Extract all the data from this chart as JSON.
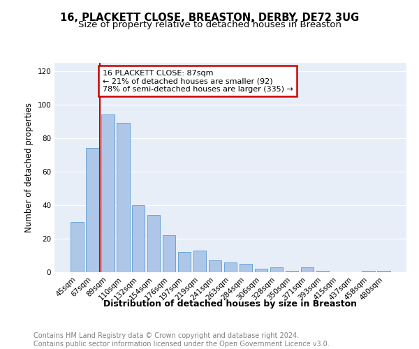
{
  "title": "16, PLACKETT CLOSE, BREASTON, DERBY, DE72 3UG",
  "subtitle": "Size of property relative to detached houses in Breaston",
  "xlabel": "Distribution of detached houses by size in Breaston",
  "ylabel": "Number of detached properties",
  "footer_line1": "Contains HM Land Registry data © Crown copyright and database right 2024.",
  "footer_line2": "Contains public sector information licensed under the Open Government Licence v3.0.",
  "bar_labels": [
    "45sqm",
    "67sqm",
    "89sqm",
    "110sqm",
    "132sqm",
    "154sqm",
    "176sqm",
    "197sqm",
    "219sqm",
    "241sqm",
    "263sqm",
    "284sqm",
    "306sqm",
    "328sqm",
    "350sqm",
    "371sqm",
    "393sqm",
    "415sqm",
    "437sqm",
    "458sqm",
    "480sqm"
  ],
  "bar_values": [
    30,
    74,
    94,
    89,
    40,
    34,
    22,
    12,
    13,
    7,
    6,
    5,
    2,
    3,
    1,
    3,
    1,
    0,
    0,
    1,
    1
  ],
  "bar_color": "#aec6e8",
  "bar_edgecolor": "#5a9bd4",
  "annotation_title": "16 PLACKETT CLOSE: 87sqm",
  "annotation_line2": "← 21% of detached houses are smaller (92)",
  "annotation_line3": "78% of semi-detached houses are larger (335) →",
  "annotation_box_color": "#cc0000",
  "vline_color": "#cc0000",
  "ylim": [
    0,
    125
  ],
  "yticks": [
    0,
    20,
    40,
    60,
    80,
    100,
    120
  ],
  "background_color": "#e8eef8",
  "grid_color": "#ffffff",
  "title_fontsize": 10.5,
  "subtitle_fontsize": 9.5,
  "ylabel_fontsize": 8.5,
  "xlabel_fontsize": 9,
  "tick_fontsize": 7.5,
  "annotation_fontsize": 8,
  "footer_fontsize": 7
}
